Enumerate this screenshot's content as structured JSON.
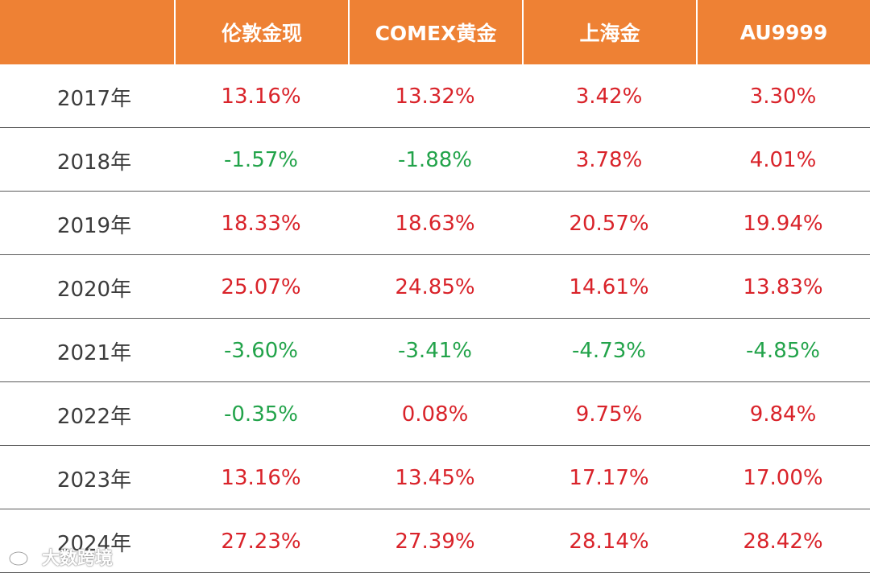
{
  "table": {
    "headers": [
      "",
      "伦敦金现",
      "COMEX黄金",
      "上海金",
      "AU9999"
    ],
    "rows": [
      {
        "year": "2017年",
        "cells": [
          {
            "text": "13.16%",
            "sign": "pos"
          },
          {
            "text": "13.32%",
            "sign": "pos"
          },
          {
            "text": "3.42%",
            "sign": "pos"
          },
          {
            "text": "3.30%",
            "sign": "pos"
          }
        ]
      },
      {
        "year": "2018年",
        "cells": [
          {
            "text": "-1.57%",
            "sign": "neg"
          },
          {
            "text": "-1.88%",
            "sign": "neg"
          },
          {
            "text": "3.78%",
            "sign": "pos"
          },
          {
            "text": "4.01%",
            "sign": "pos"
          }
        ]
      },
      {
        "year": "2019年",
        "cells": [
          {
            "text": "18.33%",
            "sign": "pos"
          },
          {
            "text": "18.63%",
            "sign": "pos"
          },
          {
            "text": "20.57%",
            "sign": "pos"
          },
          {
            "text": "19.94%",
            "sign": "pos"
          }
        ]
      },
      {
        "year": "2020年",
        "cells": [
          {
            "text": "25.07%",
            "sign": "pos"
          },
          {
            "text": "24.85%",
            "sign": "pos"
          },
          {
            "text": "14.61%",
            "sign": "pos"
          },
          {
            "text": "13.83%",
            "sign": "pos"
          }
        ]
      },
      {
        "year": "2021年",
        "cells": [
          {
            "text": "-3.60%",
            "sign": "neg"
          },
          {
            "text": "-3.41%",
            "sign": "neg"
          },
          {
            "text": "-4.73%",
            "sign": "neg"
          },
          {
            "text": "-4.85%",
            "sign": "neg"
          }
        ]
      },
      {
        "year": "2022年",
        "cells": [
          {
            "text": "-0.35%",
            "sign": "neg"
          },
          {
            "text": "0.08%",
            "sign": "pos"
          },
          {
            "text": "9.75%",
            "sign": "pos"
          },
          {
            "text": "9.84%",
            "sign": "pos"
          }
        ]
      },
      {
        "year": "2023年",
        "cells": [
          {
            "text": "13.16%",
            "sign": "pos"
          },
          {
            "text": "13.45%",
            "sign": "pos"
          },
          {
            "text": "17.17%",
            "sign": "pos"
          },
          {
            "text": "17.00%",
            "sign": "pos"
          }
        ]
      },
      {
        "year": "2024年",
        "cells": [
          {
            "text": "27.23%",
            "sign": "pos"
          },
          {
            "text": "27.39%",
            "sign": "pos"
          },
          {
            "text": "28.14%",
            "sign": "pos"
          },
          {
            "text": "28.42%",
            "sign": "pos"
          }
        ]
      }
    ]
  },
  "colors": {
    "header_bg": "#ee8134",
    "positive": "#d9232a",
    "negative": "#22a34a"
  },
  "watermark": {
    "text": "大数跨境",
    "icon": "weibo-logo-icon"
  }
}
